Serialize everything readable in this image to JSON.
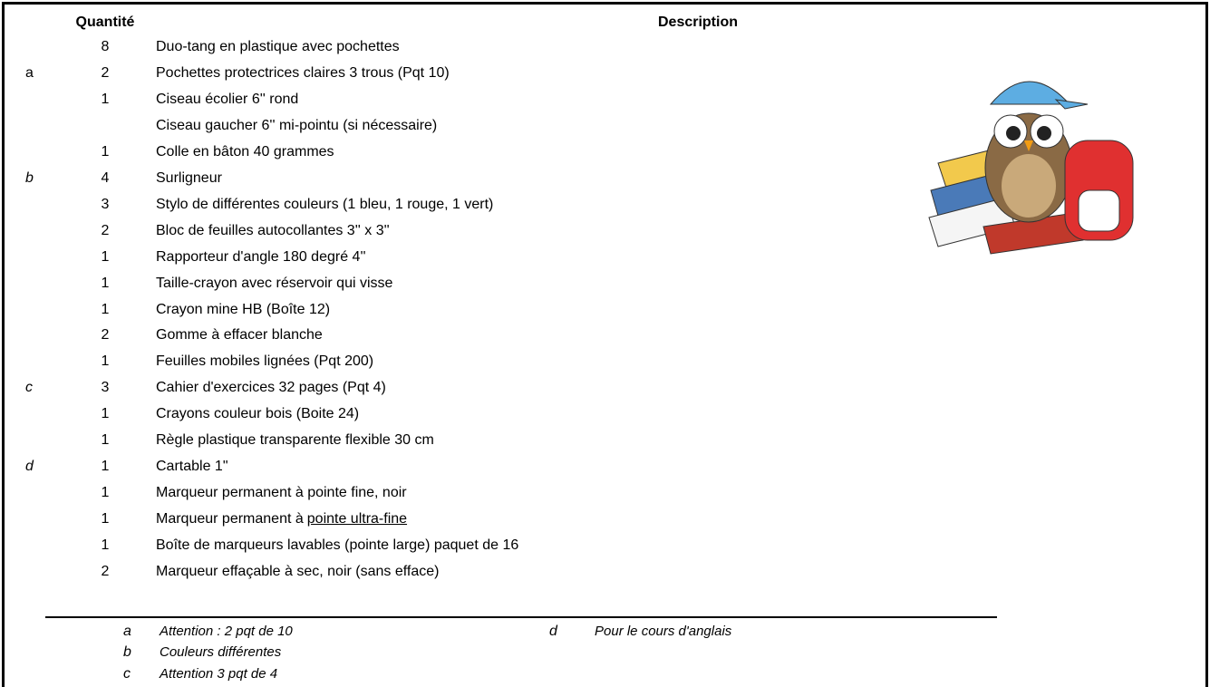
{
  "header": {
    "quantity": "Quantité",
    "description": "Description"
  },
  "table": {
    "rows": [
      {
        "note": null,
        "quantity": "8",
        "description": "Duo-tang en plastique avec pochettes"
      },
      {
        "note": "a",
        "quantity": "2",
        "description": "Pochettes protectrices claires 3 trous (Pqt 10)"
      },
      {
        "note": null,
        "quantity": "1",
        "description": "Ciseau écolier 6'' rond"
      },
      {
        "note": null,
        "quantity": null,
        "description": "Ciseau gaucher 6'' mi-pointu (si nécessaire)"
      },
      {
        "note": null,
        "quantity": "1",
        "description": "Colle en bâton 40 grammes"
      },
      {
        "note": "b",
        "quantity": "4",
        "description": "Surligneur"
      },
      {
        "note": null,
        "quantity": "3",
        "description": "Stylo de différentes couleurs (1 bleu, 1 rouge, 1 vert)"
      },
      {
        "note": null,
        "quantity": "2",
        "description": "Bloc de feuilles autocollantes 3'' x 3''"
      },
      {
        "note": null,
        "quantity": "1",
        "description": "Rapporteur d'angle 180 degré 4''"
      },
      {
        "note": null,
        "quantity": "1",
        "description": "Taille-crayon avec réservoir qui visse"
      },
      {
        "note": null,
        "quantity": "1",
        "description": "Crayon mine HB (Boîte 12)"
      },
      {
        "note": null,
        "quantity": "2",
        "description": "Gomme à effacer blanche"
      },
      {
        "note": null,
        "quantity": "1",
        "description": "Feuilles mobiles lignées (Pqt 200)"
      },
      {
        "note": "c",
        "quantity": "3",
        "description": "Cahier d'exercices 32 pages (Pqt 4)"
      },
      {
        "note": null,
        "quantity": "1",
        "description": "Crayons couleur bois (Boite 24)"
      },
      {
        "note": null,
        "quantity": "1",
        "description": "Règle plastique transparente flexible 30 cm"
      },
      {
        "note": "d",
        "quantity": "1",
        "description": "Cartable 1\""
      },
      {
        "note": null,
        "quantity": "1",
        "description": "Marqueur permanent à pointe fine, noir"
      },
      {
        "note": null,
        "quantity": "1",
        "description": "Marqueur permanent à",
        "underlined": "pointe ultra-fine"
      },
      {
        "note": null,
        "quantity": "1",
        "description": "Boîte de marqueurs lavables (pointe large) paquet de 16"
      },
      {
        "note": null,
        "quantity": "2",
        "description": "Marqueur effaçable à sec, noir (sans efface)"
      }
    ]
  },
  "footnotes": [
    {
      "mark": "a",
      "text": "Attention : 2 pqt de 10"
    },
    {
      "mark": "b",
      "text": "Couleurs différentes"
    },
    {
      "mark": "c",
      "text": "Attention 3 pqt de 4"
    },
    {
      "mark": "d",
      "text": "Pour le cours d'anglais"
    }
  ]
}
